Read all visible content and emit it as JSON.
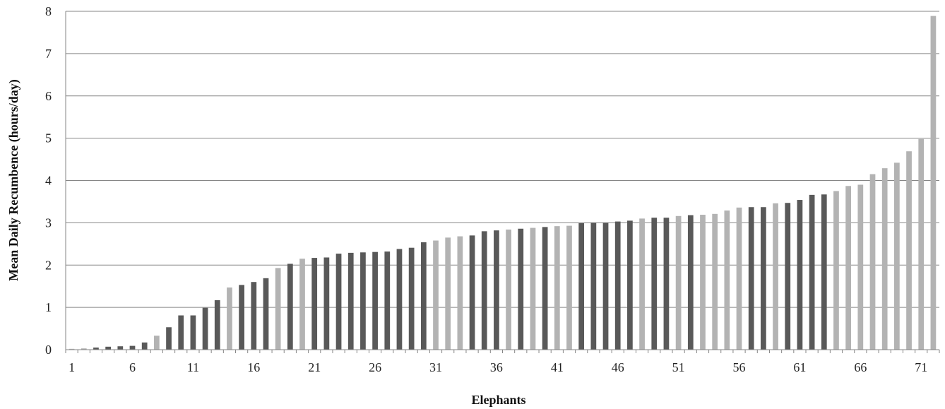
{
  "chart_data": {
    "type": "bar",
    "title": "",
    "xlabel": "Elephants",
    "ylabel": "Mean Daily Recumbence (hours/day)",
    "ylim": [
      0,
      8
    ],
    "yticks": [
      0,
      1,
      2,
      3,
      4,
      5,
      6,
      7,
      8
    ],
    "xtick_labels": [
      1,
      6,
      11,
      16,
      21,
      26,
      31,
      36,
      41,
      46,
      51,
      56,
      61,
      66,
      71
    ],
    "grid": "horizontal",
    "legend": "none",
    "colors": {
      "dark": "#595959",
      "light": "#b3b3b3",
      "grid": "#868686",
      "axis": "#868686"
    },
    "categories": [
      1,
      2,
      3,
      4,
      5,
      6,
      7,
      8,
      9,
      10,
      11,
      12,
      13,
      14,
      15,
      16,
      17,
      18,
      19,
      20,
      21,
      22,
      23,
      24,
      25,
      26,
      27,
      28,
      29,
      30,
      31,
      32,
      33,
      34,
      35,
      36,
      37,
      38,
      39,
      40,
      41,
      42,
      43,
      44,
      45,
      46,
      47,
      48,
      49,
      50,
      51,
      52,
      53,
      54,
      55,
      56,
      57,
      58,
      59,
      60,
      61,
      62,
      63,
      64,
      65,
      66,
      67,
      68,
      69,
      70,
      71,
      72
    ],
    "values": [
      0.02,
      0.03,
      0.05,
      0.07,
      0.08,
      0.09,
      0.17,
      0.33,
      0.53,
      0.81,
      0.81,
      0.99,
      1.17,
      1.47,
      1.53,
      1.6,
      1.69,
      1.93,
      2.03,
      2.15,
      2.17,
      2.18,
      2.27,
      2.29,
      2.3,
      2.31,
      2.32,
      2.38,
      2.41,
      2.54,
      2.58,
      2.65,
      2.68,
      2.7,
      2.8,
      2.82,
      2.84,
      2.86,
      2.88,
      2.9,
      2.92,
      2.93,
      2.99,
      3.0,
      3.0,
      3.03,
      3.05,
      3.1,
      3.12,
      3.12,
      3.16,
      3.18,
      3.19,
      3.21,
      3.29,
      3.36,
      3.37,
      3.37,
      3.46,
      3.47,
      3.54,
      3.66,
      3.67,
      3.75,
      3.87,
      3.9,
      4.15,
      4.29,
      4.42,
      4.69,
      4.98,
      7.89
    ],
    "bar_shades": [
      "light",
      "light",
      "dark",
      "dark",
      "dark",
      "dark",
      "dark",
      "light",
      "dark",
      "dark",
      "dark",
      "dark",
      "dark",
      "light",
      "dark",
      "dark",
      "dark",
      "light",
      "dark",
      "light",
      "dark",
      "dark",
      "dark",
      "dark",
      "dark",
      "dark",
      "dark",
      "dark",
      "dark",
      "dark",
      "light",
      "light",
      "light",
      "dark",
      "dark",
      "dark",
      "light",
      "dark",
      "light",
      "dark",
      "light",
      "light",
      "dark",
      "dark",
      "dark",
      "dark",
      "dark",
      "light",
      "dark",
      "dark",
      "light",
      "dark",
      "light",
      "light",
      "light",
      "light",
      "dark",
      "dark",
      "light",
      "dark",
      "dark",
      "dark",
      "dark",
      "light",
      "light",
      "light",
      "light",
      "light",
      "light",
      "light",
      "light",
      "light"
    ]
  }
}
